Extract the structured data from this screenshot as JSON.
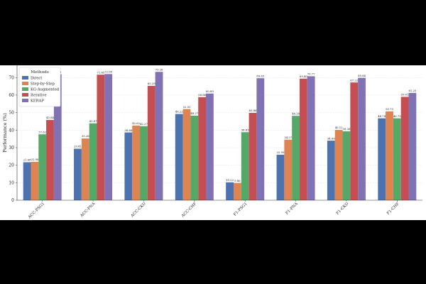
{
  "chart_data": {
    "type": "bar",
    "categories": [
      "ACC-PSG1",
      "ACC-PNA",
      "ACC-CKD",
      "ACC-CHF",
      "F1-PSG1",
      "F1-PNA",
      "F1-CKD",
      "F1-CHF"
    ],
    "ylabel": "Performance (%)",
    "xlabel": "",
    "ylim": [
      0,
      77
    ],
    "yticks": [
      0,
      10,
      20,
      30,
      40,
      50,
      60,
      70
    ],
    "grid": true,
    "legend": {
      "title": "Methods",
      "position": "top-left"
    },
    "series": [
      {
        "name": "Direct",
        "color": "#4c72b0",
        "values": [
          21.68,
          29.41,
          38.68,
          49.22,
          10.22,
          25.99,
          34.0,
          46.74
        ]
      },
      {
        "name": "Step-by-Step",
        "color": "#dd8452",
        "values": [
          21.9,
          35.26,
          42.62,
          52.03,
          9.86,
          34.57,
          40.12,
          50.73
        ]
      },
      {
        "name": "KG-Augmented",
        "color": "#55a868",
        "values": [
          37.62,
          43.87,
          42.27,
          48.27,
          38.83,
          48.14,
          39.36,
          46.75
        ]
      },
      {
        "name": "Iterative",
        "color": "#c44e52",
        "values": [
          45.84,
          71.65,
          65.29,
          58.86,
          49.86,
          69.4,
          67.22,
          59.01
        ]
      },
      {
        "name": "KERAP",
        "color": "#8172b3",
        "values": [
          71.91,
          72.0,
          73.26,
          60.89,
          69.63,
          70.77,
          69.84,
          61.25
        ]
      }
    ]
  }
}
